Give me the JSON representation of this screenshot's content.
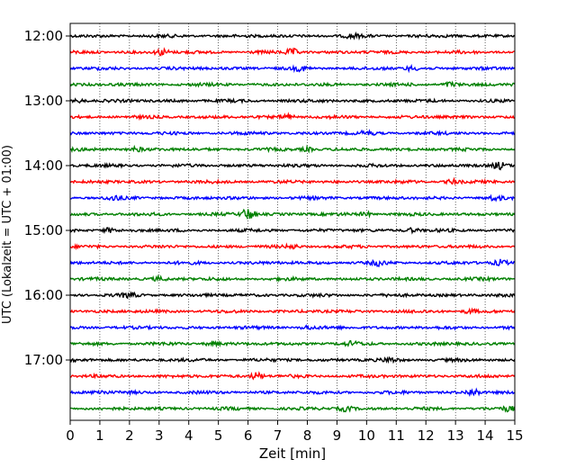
{
  "chart_data": {
    "type": "line",
    "title": "",
    "xlabel": "Zeit  [min]",
    "ylabel": "UTC (Lokalzeit = UTC + 01:00)",
    "xlim": [
      0,
      15
    ],
    "x_ticks": [
      "0",
      "1",
      "2",
      "3",
      "4",
      "5",
      "6",
      "7",
      "8",
      "9",
      "10",
      "11",
      "12",
      "13",
      "14",
      "15"
    ],
    "y_tick_labels": [
      "12:00",
      "13:00",
      "14:00",
      "15:00",
      "16:00",
      "17:00"
    ],
    "vertical_grid": "dotted, every 1 min",
    "trace_interval_minutes": 15,
    "trace_colors": [
      "#000000",
      "#ff0000",
      "#0000ff",
      "#008000"
    ],
    "traces": [
      {
        "start": "12:00",
        "color": "#000000",
        "bursts": [
          {
            "x": 9.5,
            "amp": 0.25
          }
        ]
      },
      {
        "start": "12:15",
        "color": "#ff0000",
        "bursts": [
          {
            "x": 3.1,
            "amp": 0.5
          },
          {
            "x": 7.5,
            "amp": 0.5
          }
        ]
      },
      {
        "start": "12:30",
        "color": "#0000ff",
        "bursts": [
          {
            "x": 7.8,
            "amp": 0.3
          },
          {
            "x": 11.5,
            "amp": 0.3
          }
        ]
      },
      {
        "start": "12:45",
        "color": "#008000",
        "bursts": [
          {
            "x": 12.8,
            "amp": 0.35
          }
        ]
      },
      {
        "start": "13:00",
        "color": "#000000",
        "bursts": [
          {
            "x": 0.3,
            "amp": 0.25
          }
        ]
      },
      {
        "start": "13:15",
        "color": "#ff0000",
        "bursts": [
          {
            "x": 7.3,
            "amp": 0.45
          }
        ]
      },
      {
        "start": "13:30",
        "color": "#0000ff",
        "bursts": [
          {
            "x": 10.0,
            "amp": 0.25
          }
        ]
      },
      {
        "start": "13:45",
        "color": "#008000",
        "bursts": [
          {
            "x": 2.2,
            "amp": 0.3
          },
          {
            "x": 8.0,
            "amp": 0.3
          }
        ]
      },
      {
        "start": "14:00",
        "color": "#000000",
        "bursts": [
          {
            "x": 14.5,
            "amp": 0.5
          }
        ]
      },
      {
        "start": "14:15",
        "color": "#ff0000",
        "bursts": [
          {
            "x": 12.9,
            "amp": 0.35
          }
        ]
      },
      {
        "start": "14:30",
        "color": "#0000ff",
        "bursts": [
          {
            "x": 1.5,
            "amp": 0.35
          },
          {
            "x": 14.3,
            "amp": 0.3
          }
        ]
      },
      {
        "start": "14:45",
        "color": "#008000",
        "bursts": [
          {
            "x": 6.0,
            "amp": 0.9
          },
          {
            "x": 10.0,
            "amp": 0.3
          }
        ]
      },
      {
        "start": "15:00",
        "color": "#000000",
        "bursts": [
          {
            "x": 1.3,
            "amp": 0.3
          },
          {
            "x": 11.5,
            "amp": 0.3
          }
        ]
      },
      {
        "start": "15:15",
        "color": "#ff0000",
        "bursts": [
          {
            "x": 7.5,
            "amp": 0.25
          }
        ]
      },
      {
        "start": "15:30",
        "color": "#0000ff",
        "bursts": [
          {
            "x": 10.4,
            "amp": 0.35
          },
          {
            "x": 14.5,
            "amp": 0.4
          }
        ]
      },
      {
        "start": "15:45",
        "color": "#008000",
        "bursts": [
          {
            "x": 3.0,
            "amp": 0.25
          }
        ]
      },
      {
        "start": "16:00",
        "color": "#000000",
        "bursts": [
          {
            "x": 2.0,
            "amp": 0.3
          }
        ]
      },
      {
        "start": "16:15",
        "color": "#ff0000",
        "bursts": [
          {
            "x": 13.5,
            "amp": 0.3
          }
        ]
      },
      {
        "start": "16:30",
        "color": "#0000ff",
        "bursts": [
          {
            "x": 8.0,
            "amp": 0.25
          }
        ]
      },
      {
        "start": "16:45",
        "color": "#008000",
        "bursts": [
          {
            "x": 4.8,
            "amp": 0.3
          },
          {
            "x": 9.5,
            "amp": 0.25
          }
        ]
      },
      {
        "start": "17:00",
        "color": "#000000",
        "bursts": [
          {
            "x": 10.8,
            "amp": 0.3
          }
        ]
      },
      {
        "start": "17:15",
        "color": "#ff0000",
        "bursts": [
          {
            "x": 6.3,
            "amp": 0.55
          }
        ]
      },
      {
        "start": "17:30",
        "color": "#0000ff",
        "bursts": [
          {
            "x": 13.6,
            "amp": 0.5
          },
          {
            "x": 1.0,
            "amp": 0.3
          }
        ]
      },
      {
        "start": "17:45",
        "color": "#008000",
        "bursts": [
          {
            "x": 9.3,
            "amp": 0.35
          },
          {
            "x": 14.8,
            "amp": 0.3
          }
        ]
      }
    ]
  }
}
